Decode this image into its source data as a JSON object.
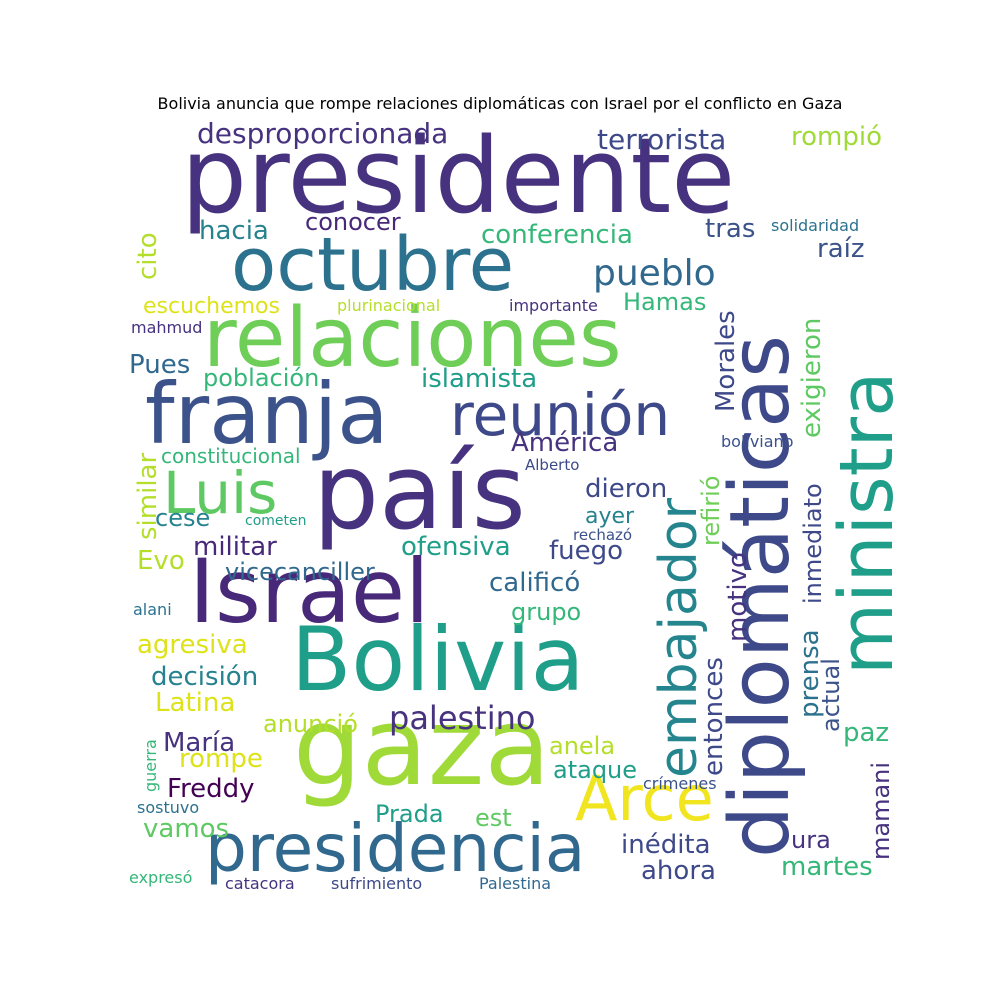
{
  "title": "Bolivia anuncia que rompe relaciones diplomáticas con Israel por el conflicto en Gaza",
  "colors": {
    "dark_purple": "#46327e",
    "deep_purple": "#440154",
    "indigo": "#3e4989",
    "navy": "#31688e",
    "teal": "#26828e",
    "green_teal": "#1f9e89",
    "green": "#35b779",
    "light_green": "#6ece58",
    "lime": "#b5de2b",
    "yellow": "#fde725"
  },
  "words": {
    "presidente": "presidente",
    "octubre": "octubre",
    "relaciones": "relaciones",
    "franja": "franja",
    "reunion": "reunión",
    "pais": "país",
    "luis": "Luis",
    "israel": "Israel",
    "bolivia": "Bolivia",
    "gaza": "gaza",
    "arce": "Arce",
    "presidencia": "presidencia",
    "diplomaticas": "diplomáticas",
    "ministra": "ministra",
    "embajador": "embajador",
    "desproporcionada": "desproporcionada",
    "terrorista": "terrorista",
    "rompio": "rompió",
    "conocer": "conocer",
    "hacia": "hacia",
    "conferencia": "conferencia",
    "tras": "tras",
    "solidaridad": "solidaridad",
    "cito": "cito",
    "pueblo": "pueblo",
    "raiz": "raíz",
    "escuchemos": "escuchemos",
    "plurinacional": "plurinacional",
    "importante": "importante",
    "hamas": "Hamas",
    "mahmud": "mahmud",
    "pues": "Pues",
    "poblacion": "población",
    "islamista": "islamista",
    "morales": "Morales",
    "exigieron": "exigieron",
    "america": "América",
    "boliviano": "boliviano",
    "constitucional": "constitucional",
    "alberto": "Alberto",
    "similar": "similar",
    "dieron": "dieron",
    "refirio": "refirió",
    "cese": "cese",
    "cometen": "cometen",
    "ayer": "ayer",
    "inmediato": "inmediato",
    "rechazo": "rechazó",
    "militar": "militar",
    "ofensiva": "ofensiva",
    "fuego": "fuego",
    "evo": "Evo",
    "vicecanciller": "vicecanciller",
    "motivo": "motivo",
    "califico": "calificó",
    "alani": "alani",
    "grupo": "grupo",
    "prensa": "prensa",
    "agresiva": "agresiva",
    "actual": "actual",
    "entonces": "entonces",
    "decision": "decisión",
    "latina": "Latina",
    "palestino": "palestino",
    "anuncio": "anunció",
    "paz": "paz",
    "maria": "María",
    "guerra": "guerra",
    "anela": "anela",
    "rompe": "rompe",
    "ataque": "ataque",
    "mamani": "mamani",
    "crimenes": "crímenes",
    "freddy": "Freddy",
    "sostuvo": "sostuvo",
    "prada": "Prada",
    "est": "est",
    "vamos": "vamos",
    "ura": "ura",
    "inedita": "inédita",
    "martes": "martes",
    "ahora": "ahora",
    "expreso": "expresó",
    "catacora": "catacora",
    "sufrimiento": "sufrimiento",
    "palestina": "Palestina"
  }
}
